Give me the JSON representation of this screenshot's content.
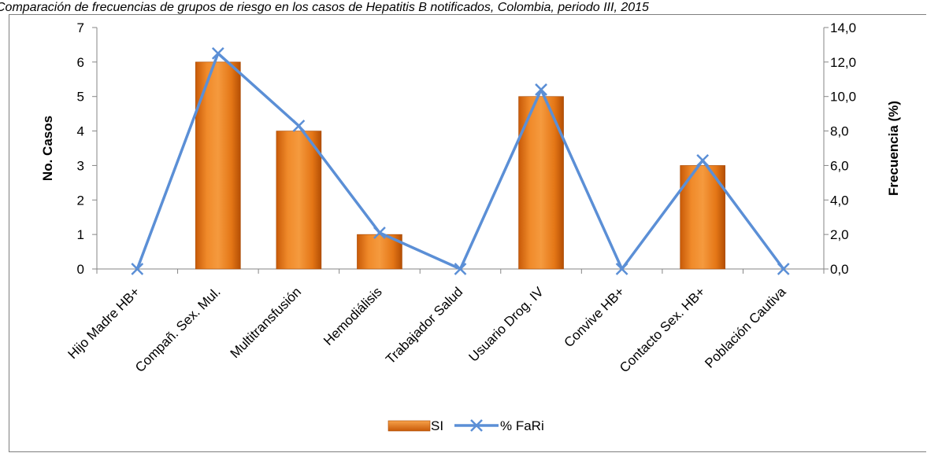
{
  "page": {
    "title": "Comparación de frecuencias de grupos de riesgo en los casos de Hepatitis B notificados, Colombia, periodo III, 2015"
  },
  "chart_data": {
    "type": "bar",
    "categories": [
      "Hijo Madre HB+",
      "Compañ. Sex. Mul.",
      "Multitransfusión",
      "Hemodiálisis",
      "Trabajador Salud",
      "Usuario Drog. IV",
      "Convive HB+",
      "Contacto Sex. HB+",
      "Población Cautiva"
    ],
    "series": [
      {
        "name": "SI",
        "type": "bar",
        "axis": "left",
        "color": "#ED7D1A",
        "values": [
          0,
          6,
          4,
          1,
          0,
          5,
          0,
          3,
          0
        ]
      },
      {
        "name": "% FaRi",
        "type": "line",
        "axis": "right",
        "color": "#5B8FD6",
        "marker": "x",
        "values": [
          0.0,
          12.5,
          8.3,
          2.1,
          0.0,
          10.4,
          0.0,
          6.3,
          0.0
        ]
      }
    ],
    "ylabel": "No. Casos",
    "y2label": "Frecuencia (%)",
    "ylim": [
      0,
      7
    ],
    "y2lim": [
      0,
      14
    ],
    "yticks": [
      "0",
      "1",
      "2",
      "3",
      "4",
      "5",
      "6",
      "7"
    ],
    "y2ticks": [
      "0,0",
      "2,0",
      "4,0",
      "6,0",
      "8,0",
      "10,0",
      "12,0",
      "14,0"
    ],
    "grid": false,
    "legend": "bottom"
  }
}
